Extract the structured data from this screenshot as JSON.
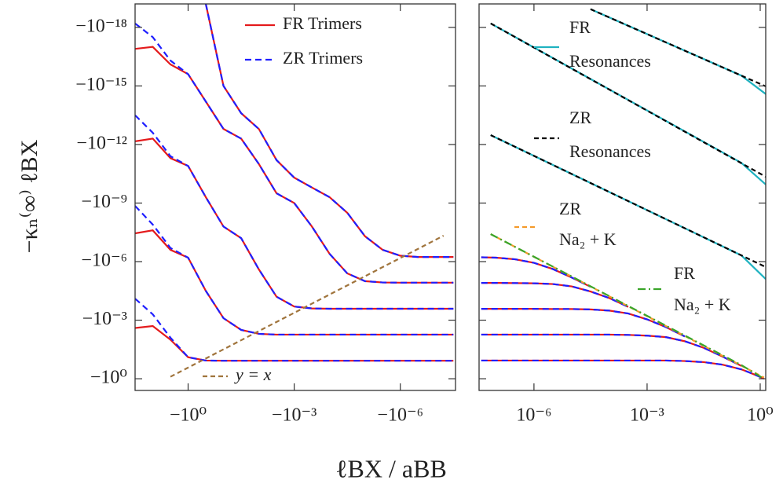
{
  "chart_data": [
    {
      "type": "line",
      "ylabel": "−κₙ⁽∞⁾ ℓBX",
      "xscale": "log",
      "yscale": "log",
      "xlim": [
        -31.6,
        -2.75e-08
      ],
      "xticks": [
        {
          "value": -1,
          "label": "−10⁰"
        },
        {
          "value": -0.001,
          "label": "−10⁻³"
        },
        {
          "value": -1e-06,
          "label": "−10⁻⁶"
        }
      ],
      "ylim": [
        -3.98,
        -6.3e-20
      ],
      "yticks": [
        {
          "value": -1,
          "label": "−10⁰"
        },
        {
          "value": -0.001,
          "label": "−10⁻³"
        },
        {
          "value": -1e-06,
          "label": "−10⁻⁶"
        },
        {
          "value": -1e-09,
          "label": "−10⁻⁹"
        },
        {
          "value": -1e-12,
          "label": "−10⁻¹²"
        },
        {
          "value": -1e-15,
          "label": "−10⁻¹⁵"
        },
        {
          "value": -1e-18,
          "label": "−10⁻¹⁸"
        }
      ],
      "x": [
        -31.6,
        -10,
        -3.16,
        -1,
        -0.316,
        -0.1,
        -0.0316,
        -0.01,
        -0.00316,
        -0.001,
        -0.000316,
        -0.0001,
        -3.16e-05,
        -1e-05,
        -3.16e-06,
        -1e-06,
        -3.16e-07,
        -1e-07,
        -3.16e-08
      ],
      "series": [
        {
          "name": "FR Trimers",
          "color": "#e41a1c",
          "dash": null,
          "lines": [
            {
              "values": [
                -0.00251,
                -0.002,
                -0.01,
                -0.079,
                -0.117,
                -0.12,
                -0.12,
                -0.12,
                -0.12,
                -0.12,
                -0.12,
                -0.12,
                -0.12,
                -0.12,
                -0.12,
                -0.12,
                -0.12,
                -0.12,
                -0.12
              ]
            },
            {
              "values": [
                -3.55e-08,
                -2.5e-08,
                -2.5e-07,
                -6.3e-07,
                -3.16e-05,
                -0.00079,
                -0.00316,
                -0.005,
                -0.0055,
                -0.0055,
                -0.0055,
                -0.0055,
                -0.0055,
                -0.0055,
                -0.0055,
                -0.0055,
                -0.0055,
                -0.0055,
                -0.0055
              ]
            },
            {
              "values": [
                -6.9e-13,
                -5e-13,
                -5e-12,
                -1.26e-11,
                -5e-10,
                -1.6e-08,
                -6.3e-08,
                -2.5e-06,
                -6.3e-05,
                -0.0002,
                -0.00025,
                -0.00026,
                -0.00026,
                -0.00026,
                -0.00026,
                -0.00026,
                -0.00026,
                -0.00026,
                -0.00026
              ]
            },
            {
              "values": [
                -1.26e-17,
                -1e-17,
                -7.9e-17,
                -2.5e-16,
                -6.3e-15,
                -1.6e-13,
                -5e-13,
                -1e-11,
                -3.16e-10,
                -1e-09,
                -1.6e-08,
                -4e-07,
                -4e-06,
                -1e-05,
                -1.17e-05,
                -1.2e-05,
                -1.2e-05,
                -1.2e-05,
                -1.2e-05
              ]
            },
            {
              "values": [
                null,
                null,
                null,
                null,
                -6.3e-20,
                -1e-15,
                -2.5e-14,
                -1.6e-13,
                -6.3e-12,
                -5e-11,
                -1.6e-10,
                -5e-10,
                -3.16e-09,
                -5e-08,
                -2.5e-07,
                -5e-07,
                -5.8e-07,
                -5.8e-07,
                -5.8e-07
              ]
            }
          ]
        },
        {
          "name": "ZR Trimers",
          "color": "#1f1fff",
          "dash": "8,5",
          "lines": [
            {
              "values": [
                -7.9e-05,
                -0.0005,
                -0.0079,
                -0.079,
                -0.117,
                -0.12,
                -0.12,
                -0.12,
                -0.12,
                -0.12,
                -0.12,
                -0.12,
                -0.12,
                -0.12,
                -0.12,
                -0.12,
                -0.12,
                -0.12,
                -0.12
              ]
            },
            {
              "values": [
                -1.4e-09,
                -1.26e-08,
                -2e-07,
                -6.3e-07,
                -3.16e-05,
                -0.00079,
                -0.00316,
                -0.005,
                -0.0055,
                -0.0055,
                -0.0055,
                -0.0055,
                -0.0055,
                -0.0055,
                -0.0055,
                -0.0055,
                -0.0055,
                -0.0055,
                -0.0055
              ]
            },
            {
              "values": [
                -3.16e-14,
                -2.5e-13,
                -4e-12,
                -1.26e-11,
                -5e-10,
                -1.6e-08,
                -6.3e-08,
                -2.5e-06,
                -6.3e-05,
                -0.0002,
                -0.00025,
                -0.00026,
                -0.00026,
                -0.00026,
                -0.00026,
                -0.00026,
                -0.00026,
                -0.00026,
                -0.00026
              ]
            },
            {
              "values": [
                -6.3e-19,
                -3.16e-18,
                -5e-17,
                -2.5e-16,
                -6.3e-15,
                -1.6e-13,
                -5e-13,
                -1e-11,
                -3.16e-10,
                -1e-09,
                -1.6e-08,
                -4e-07,
                -4e-06,
                -1e-05,
                -1.17e-05,
                -1.2e-05,
                -1.2e-05,
                -1.2e-05,
                -1.2e-05
              ]
            },
            {
              "values": [
                null,
                null,
                null,
                null,
                -6.3e-20,
                -1e-15,
                -2.5e-14,
                -1.6e-13,
                -6.3e-12,
                -5e-11,
                -1.6e-10,
                -5e-10,
                -3.16e-09,
                -5e-08,
                -2.5e-07,
                -5e-07,
                -5.8e-07,
                -5.8e-07,
                -5.8e-07
              ]
            }
          ]
        },
        {
          "name": "y = x",
          "color": "#a0743c",
          "dash": "6,4",
          "x": [
            -3.16,
            -6e-08
          ],
          "values": [
            -0.79,
            -4.7e-08
          ]
        }
      ]
    },
    {
      "type": "line",
      "xscale": "log",
      "yscale": "log",
      "xlim": [
        3.5e-08,
        1.4
      ],
      "xticks": [
        {
          "value": 1e-06,
          "label": "10⁻⁶"
        },
        {
          "value": 0.001,
          "label": "10⁻³"
        },
        {
          "value": 1,
          "label": "10⁰"
        }
      ],
      "x": [
        4e-08,
        1e-07,
        3.16e-07,
        1e-06,
        3.16e-06,
        1e-05,
        3.16e-05,
        0.0001,
        0.000316,
        0.001,
        0.00316,
        0.01,
        0.0316,
        0.1,
        0.316,
        0.562,
        1,
        1.26
      ],
      "series": [
        {
          "color": "#e41a1c",
          "dash": null,
          "lines": [
            {
              "values": [
                -6e-07,
                -6.3e-07,
                -7.6e-07,
                -1.15e-06,
                -2.4e-06,
                -6.5e-06,
                -1.95e-05,
                null,
                null,
                null,
                null,
                null,
                null,
                null,
                null,
                null,
                null,
                null
              ]
            },
            {
              "values": [
                -1.23e-05,
                -1.23e-05,
                -1.26e-05,
                -1.29e-05,
                -1.41e-05,
                -1.86e-05,
                -3.39e-05,
                -7.4e-05,
                -0.000209,
                null,
                null,
                null,
                null,
                null,
                null,
                null,
                null,
                null
              ]
            },
            {
              "values": [
                -0.000263,
                -0.000263,
                -0.000263,
                -0.000263,
                -0.000269,
                -0.000269,
                -0.000282,
                -0.000324,
                -0.000457,
                -0.00091,
                -0.00226,
                -0.0068,
                null,
                null,
                null,
                null,
                null,
                null
              ]
            },
            {
              "values": [
                -0.0055,
                -0.0055,
                -0.0055,
                -0.0055,
                -0.0055,
                -0.0055,
                -0.0055,
                -0.0055,
                -0.0057,
                -0.0062,
                -0.0074,
                -0.012,
                -0.026,
                -0.073,
                -0.22,
                null,
                null,
                null
              ]
            },
            {
              "values": [
                -0.117,
                -0.117,
                -0.117,
                -0.117,
                -0.117,
                -0.117,
                -0.117,
                -0.117,
                -0.117,
                -0.117,
                -0.117,
                -0.124,
                -0.141,
                -0.19,
                -0.33,
                -0.51,
                -0.81,
                -1.0
              ]
            }
          ]
        },
        {
          "color": "#1f1fff",
          "dash": "8,5",
          "lines": [
            {
              "values": [
                -6e-07,
                -6.3e-07,
                -7.6e-07,
                -1.15e-06,
                -2.4e-06,
                -6.5e-06,
                -1.95e-05,
                null,
                null,
                null,
                null,
                null,
                null,
                null,
                null,
                null,
                null,
                null
              ]
            },
            {
              "values": [
                -1.23e-05,
                -1.23e-05,
                -1.26e-05,
                -1.29e-05,
                -1.41e-05,
                -1.86e-05,
                -3.39e-05,
                -7.4e-05,
                -0.000209,
                null,
                null,
                null,
                null,
                null,
                null,
                null,
                null,
                null
              ]
            },
            {
              "values": [
                -0.000263,
                -0.000263,
                -0.000263,
                -0.000263,
                -0.000269,
                -0.000269,
                -0.000282,
                -0.000324,
                -0.000457,
                -0.00091,
                -0.00226,
                -0.0068,
                null,
                null,
                null,
                null,
                null,
                null
              ]
            },
            {
              "values": [
                -0.0055,
                -0.0055,
                -0.0055,
                -0.0055,
                -0.0055,
                -0.0055,
                -0.0055,
                -0.0055,
                -0.0057,
                -0.0062,
                -0.0074,
                -0.012,
                -0.026,
                -0.073,
                -0.22,
                null,
                null,
                null
              ]
            },
            {
              "values": [
                -0.117,
                -0.117,
                -0.117,
                -0.117,
                -0.117,
                -0.117,
                -0.117,
                -0.117,
                -0.117,
                -0.117,
                -0.117,
                -0.124,
                -0.141,
                -0.19,
                -0.33,
                -0.51,
                -0.81,
                -1.0
              ]
            }
          ]
        },
        {
          "name": "FR Resonances",
          "color": "#1fb2c0",
          "dash": null,
          "lines": [
            {
              "x": [
                3.16e-05,
                0.316,
                1.4
              ],
              "values": [
                -1.17e-19,
                -2.95e-16,
                -2.6e-15
              ]
            },
            {
              "x": [
                7.1e-08,
                0.316,
                1.4
              ],
              "values": [
                -6.3e-19,
                -8.7e-12,
                -1.12e-10
              ]
            },
            {
              "x": [
                7.1e-08,
                0.316,
                1.4
              ],
              "values": [
                -3.3e-13,
                -4.8e-07,
                -7.8e-06
              ]
            }
          ]
        },
        {
          "name": "ZR Resonances",
          "color": "#000000",
          "dash": "6,4",
          "lines": [
            {
              "x": [
                3.16e-05,
                1.4
              ],
              "values": [
                -1.17e-19,
                -1.05e-15
              ]
            },
            {
              "x": [
                7.1e-08,
                1.4
              ],
              "values": [
                -6.3e-19,
                -4.5e-11
              ]
            },
            {
              "x": [
                7.1e-08,
                1.4
              ],
              "values": [
                -3.3e-13,
                -1.9e-06
              ]
            }
          ]
        },
        {
          "name": "ZR Na₂ + K",
          "color": "#f59a2a",
          "dash": "6,4",
          "x": [
            7.1e-08,
            1.26
          ],
          "values": [
            -3.9e-08,
            -0.87
          ]
        },
        {
          "name": "FR Na₂ + K",
          "color": "#3aa52a",
          "dash": "10,4,2,4",
          "x": [
            7.1e-08,
            0.316,
            1.26
          ],
          "values": [
            -3.9e-08,
            -0.2,
            -1.0
          ]
        }
      ]
    }
  ],
  "xlabel": "ℓBX / aBB"
}
